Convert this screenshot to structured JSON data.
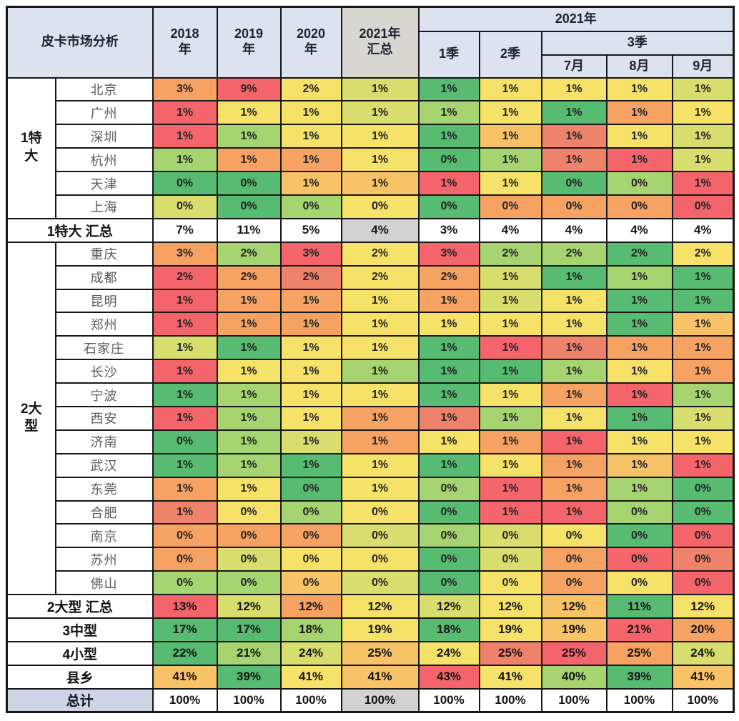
{
  "chart_data": {
    "type": "heatmap-table",
    "title": "皮卡市场分析",
    "header": {
      "corner": "皮卡市场分析",
      "y2018": "2018\n年",
      "y2019": "2019\n年",
      "y2020": "2020\n年",
      "y2021_total": "2021年\n汇总",
      "y2021": "2021年",
      "q1": "1季",
      "q2": "2季",
      "q3": "3季",
      "m7": "7月",
      "m8": "8月",
      "m9": "9月"
    },
    "columns": [
      "2018年",
      "2019年",
      "2020年",
      "2021年汇总",
      "2021年1季",
      "2021年2季",
      "2021年3季7月",
      "2021年3季8月",
      "2021年3季9月"
    ],
    "palette": {
      "r": "#f3656b",
      "ro": "#ef826a",
      "o": "#f5a263",
      "oy": "#f8c266",
      "y": "#f6e169",
      "yg": "#d7de6e",
      "lg": "#a5d471",
      "g": "#57bb72",
      "w": "#ffffff",
      "gr": "#d2d2d2"
    },
    "groups": [
      {
        "label": "1特\n大",
        "size": 6
      },
      {
        "label": "2大\n型",
        "size": 15
      }
    ],
    "rows": [
      {
        "type": "city",
        "groupStart": 0,
        "city": "北京",
        "cells": [
          [
            "3%",
            "o"
          ],
          [
            "9%",
            "r"
          ],
          [
            "2%",
            "y"
          ],
          [
            "1%",
            "yg"
          ],
          [
            "1%",
            "g"
          ],
          [
            "1%",
            "y"
          ],
          [
            "1%",
            "y"
          ],
          [
            "1%",
            "y"
          ],
          [
            "1%",
            "yg"
          ]
        ]
      },
      {
        "type": "city",
        "city": "广州",
        "cells": [
          [
            "1%",
            "r"
          ],
          [
            "1%",
            "y"
          ],
          [
            "1%",
            "y"
          ],
          [
            "1%",
            "yg"
          ],
          [
            "1%",
            "lg"
          ],
          [
            "1%",
            "y"
          ],
          [
            "1%",
            "g"
          ],
          [
            "1%",
            "o"
          ],
          [
            "1%",
            "y"
          ]
        ]
      },
      {
        "type": "city",
        "city": "深圳",
        "cells": [
          [
            "1%",
            "r"
          ],
          [
            "1%",
            "lg"
          ],
          [
            "1%",
            "y"
          ],
          [
            "1%",
            "y"
          ],
          [
            "1%",
            "g"
          ],
          [
            "1%",
            "oy"
          ],
          [
            "1%",
            "ro"
          ],
          [
            "1%",
            "y"
          ],
          [
            "1%",
            "yg"
          ]
        ]
      },
      {
        "type": "city",
        "city": "杭州",
        "cells": [
          [
            "1%",
            "lg"
          ],
          [
            "1%",
            "o"
          ],
          [
            "1%",
            "o"
          ],
          [
            "1%",
            "y"
          ],
          [
            "0%",
            "g"
          ],
          [
            "1%",
            "lg"
          ],
          [
            "1%",
            "ro"
          ],
          [
            "1%",
            "r"
          ],
          [
            "1%",
            "yg"
          ]
        ]
      },
      {
        "type": "city",
        "city": "天津",
        "cells": [
          [
            "0%",
            "g"
          ],
          [
            "0%",
            "g"
          ],
          [
            "1%",
            "oy"
          ],
          [
            "1%",
            "oy"
          ],
          [
            "1%",
            "r"
          ],
          [
            "1%",
            "y"
          ],
          [
            "0%",
            "g"
          ],
          [
            "0%",
            "lg"
          ],
          [
            "1%",
            "r"
          ]
        ]
      },
      {
        "type": "city",
        "city": "上海",
        "cells": [
          [
            "0%",
            "yg"
          ],
          [
            "0%",
            "g"
          ],
          [
            "0%",
            "lg"
          ],
          [
            "0%",
            "y"
          ],
          [
            "0%",
            "g"
          ],
          [
            "0%",
            "o"
          ],
          [
            "0%",
            "o"
          ],
          [
            "0%",
            "o"
          ],
          [
            "0%",
            "r"
          ]
        ]
      },
      {
        "type": "summary",
        "label": "1特大 汇总",
        "cells": [
          [
            "7%",
            "w"
          ],
          [
            "11%",
            "w"
          ],
          [
            "5%",
            "w"
          ],
          [
            "4%",
            "gr"
          ],
          [
            "3%",
            "w"
          ],
          [
            "4%",
            "w"
          ],
          [
            "4%",
            "w"
          ],
          [
            "4%",
            "w"
          ],
          [
            "4%",
            "w"
          ]
        ]
      },
      {
        "type": "city",
        "groupStart": 1,
        "city": "重庆",
        "cells": [
          [
            "3%",
            "o"
          ],
          [
            "2%",
            "lg"
          ],
          [
            "3%",
            "r"
          ],
          [
            "2%",
            "y"
          ],
          [
            "3%",
            "r"
          ],
          [
            "2%",
            "lg"
          ],
          [
            "2%",
            "lg"
          ],
          [
            "2%",
            "g"
          ],
          [
            "2%",
            "y"
          ]
        ]
      },
      {
        "type": "city",
        "city": "成都",
        "cells": [
          [
            "2%",
            "r"
          ],
          [
            "2%",
            "o"
          ],
          [
            "2%",
            "ro"
          ],
          [
            "2%",
            "y"
          ],
          [
            "2%",
            "o"
          ],
          [
            "1%",
            "yg"
          ],
          [
            "1%",
            "g"
          ],
          [
            "1%",
            "lg"
          ],
          [
            "1%",
            "g"
          ]
        ]
      },
      {
        "type": "city",
        "city": "昆明",
        "cells": [
          [
            "1%",
            "r"
          ],
          [
            "1%",
            "o"
          ],
          [
            "1%",
            "o"
          ],
          [
            "1%",
            "y"
          ],
          [
            "1%",
            "o"
          ],
          [
            "1%",
            "yg"
          ],
          [
            "1%",
            "y"
          ],
          [
            "1%",
            "g"
          ],
          [
            "1%",
            "g"
          ]
        ]
      },
      {
        "type": "city",
        "city": "郑州",
        "cells": [
          [
            "1%",
            "r"
          ],
          [
            "1%",
            "o"
          ],
          [
            "1%",
            "o"
          ],
          [
            "1%",
            "y"
          ],
          [
            "1%",
            "y"
          ],
          [
            "1%",
            "y"
          ],
          [
            "1%",
            "y"
          ],
          [
            "1%",
            "g"
          ],
          [
            "1%",
            "oy"
          ]
        ]
      },
      {
        "type": "city",
        "city": "石家庄",
        "cells": [
          [
            "1%",
            "yg"
          ],
          [
            "1%",
            "g"
          ],
          [
            "1%",
            "y"
          ],
          [
            "1%",
            "y"
          ],
          [
            "1%",
            "g"
          ],
          [
            "1%",
            "r"
          ],
          [
            "1%",
            "ro"
          ],
          [
            "1%",
            "o"
          ],
          [
            "1%",
            "o"
          ]
        ]
      },
      {
        "type": "city",
        "city": "长沙",
        "cells": [
          [
            "1%",
            "r"
          ],
          [
            "1%",
            "y"
          ],
          [
            "1%",
            "y"
          ],
          [
            "1%",
            "lg"
          ],
          [
            "1%",
            "g"
          ],
          [
            "1%",
            "g"
          ],
          [
            "1%",
            "lg"
          ],
          [
            "1%",
            "y"
          ],
          [
            "1%",
            "o"
          ]
        ]
      },
      {
        "type": "city",
        "city": "宁波",
        "cells": [
          [
            "1%",
            "g"
          ],
          [
            "1%",
            "lg"
          ],
          [
            "1%",
            "y"
          ],
          [
            "1%",
            "y"
          ],
          [
            "1%",
            "g"
          ],
          [
            "1%",
            "y"
          ],
          [
            "1%",
            "o"
          ],
          [
            "1%",
            "r"
          ],
          [
            "1%",
            "lg"
          ]
        ]
      },
      {
        "type": "city",
        "city": "西安",
        "cells": [
          [
            "1%",
            "r"
          ],
          [
            "1%",
            "lg"
          ],
          [
            "1%",
            "y"
          ],
          [
            "1%",
            "o"
          ],
          [
            "1%",
            "ro"
          ],
          [
            "1%",
            "lg"
          ],
          [
            "1%",
            "y"
          ],
          [
            "1%",
            "g"
          ],
          [
            "1%",
            "yg"
          ]
        ]
      },
      {
        "type": "city",
        "city": "济南",
        "cells": [
          [
            "0%",
            "g"
          ],
          [
            "1%",
            "lg"
          ],
          [
            "1%",
            "yg"
          ],
          [
            "1%",
            "o"
          ],
          [
            "1%",
            "y"
          ],
          [
            "1%",
            "o"
          ],
          [
            "1%",
            "r"
          ],
          [
            "1%",
            "y"
          ],
          [
            "1%",
            "y"
          ]
        ]
      },
      {
        "type": "city",
        "city": "武汉",
        "cells": [
          [
            "1%",
            "g"
          ],
          [
            "1%",
            "lg"
          ],
          [
            "1%",
            "g"
          ],
          [
            "1%",
            "y"
          ],
          [
            "1%",
            "g"
          ],
          [
            "1%",
            "y"
          ],
          [
            "1%",
            "o"
          ],
          [
            "1%",
            "oy"
          ],
          [
            "1%",
            "r"
          ]
        ]
      },
      {
        "type": "city",
        "city": "东莞",
        "cells": [
          [
            "1%",
            "o"
          ],
          [
            "1%",
            "y"
          ],
          [
            "0%",
            "g"
          ],
          [
            "1%",
            "y"
          ],
          [
            "0%",
            "lg"
          ],
          [
            "1%",
            "r"
          ],
          [
            "1%",
            "o"
          ],
          [
            "1%",
            "lg"
          ],
          [
            "0%",
            "g"
          ]
        ]
      },
      {
        "type": "city",
        "city": "合肥",
        "cells": [
          [
            "1%",
            "ro"
          ],
          [
            "0%",
            "y"
          ],
          [
            "0%",
            "lg"
          ],
          [
            "0%",
            "y"
          ],
          [
            "0%",
            "g"
          ],
          [
            "1%",
            "r"
          ],
          [
            "1%",
            "r"
          ],
          [
            "0%",
            "lg"
          ],
          [
            "0%",
            "g"
          ]
        ]
      },
      {
        "type": "city",
        "city": "南京",
        "cells": [
          [
            "0%",
            "o"
          ],
          [
            "0%",
            "o"
          ],
          [
            "0%",
            "o"
          ],
          [
            "0%",
            "yg"
          ],
          [
            "0%",
            "lg"
          ],
          [
            "0%",
            "yg"
          ],
          [
            "0%",
            "y"
          ],
          [
            "0%",
            "g"
          ],
          [
            "0%",
            "r"
          ]
        ]
      },
      {
        "type": "city",
        "city": "苏州",
        "cells": [
          [
            "0%",
            "o"
          ],
          [
            "0%",
            "yg"
          ],
          [
            "0%",
            "y"
          ],
          [
            "0%",
            "y"
          ],
          [
            "0%",
            "g"
          ],
          [
            "0%",
            "yg"
          ],
          [
            "0%",
            "o"
          ],
          [
            "0%",
            "r"
          ],
          [
            "0%",
            "ro"
          ]
        ]
      },
      {
        "type": "city",
        "city": "佛山",
        "cells": [
          [
            "0%",
            "lg"
          ],
          [
            "0%",
            "lg"
          ],
          [
            "0%",
            "oy"
          ],
          [
            "0%",
            "yg"
          ],
          [
            "0%",
            "g"
          ],
          [
            "0%",
            "y"
          ],
          [
            "0%",
            "o"
          ],
          [
            "0%",
            "y"
          ],
          [
            "0%",
            "r"
          ]
        ]
      },
      {
        "type": "summary",
        "label": "2大型 汇总",
        "cells": [
          [
            "13%",
            "r"
          ],
          [
            "12%",
            "yg"
          ],
          [
            "12%",
            "o"
          ],
          [
            "12%",
            "y"
          ],
          [
            "12%",
            "yg"
          ],
          [
            "12%",
            "y"
          ],
          [
            "12%",
            "oy"
          ],
          [
            "11%",
            "g"
          ],
          [
            "12%",
            "y"
          ]
        ]
      },
      {
        "type": "summary",
        "label": "3中型",
        "cells": [
          [
            "17%",
            "g"
          ],
          [
            "17%",
            "g"
          ],
          [
            "18%",
            "lg"
          ],
          [
            "19%",
            "y"
          ],
          [
            "18%",
            "g"
          ],
          [
            "19%",
            "y"
          ],
          [
            "19%",
            "oy"
          ],
          [
            "21%",
            "r"
          ],
          [
            "20%",
            "o"
          ]
        ]
      },
      {
        "type": "summary",
        "label": "4小型",
        "cells": [
          [
            "22%",
            "g"
          ],
          [
            "21%",
            "lg"
          ],
          [
            "24%",
            "yg"
          ],
          [
            "25%",
            "oy"
          ],
          [
            "24%",
            "y"
          ],
          [
            "25%",
            "ro"
          ],
          [
            "25%",
            "r"
          ],
          [
            "25%",
            "o"
          ],
          [
            "24%",
            "yg"
          ]
        ]
      },
      {
        "type": "summary",
        "label": "县乡",
        "cells": [
          [
            "41%",
            "oy"
          ],
          [
            "39%",
            "g"
          ],
          [
            "41%",
            "y"
          ],
          [
            "41%",
            "oy"
          ],
          [
            "43%",
            "r"
          ],
          [
            "41%",
            "y"
          ],
          [
            "40%",
            "lg"
          ],
          [
            "39%",
            "g"
          ],
          [
            "41%",
            "oy"
          ]
        ]
      },
      {
        "type": "total",
        "label": "总计",
        "cells": [
          [
            "100%",
            "w"
          ],
          [
            "100%",
            "w"
          ],
          [
            "100%",
            "w"
          ],
          [
            "100%",
            "gr"
          ],
          [
            "100%",
            "w"
          ],
          [
            "100%",
            "w"
          ],
          [
            "100%",
            "w"
          ],
          [
            "100%",
            "w"
          ],
          [
            "100%",
            "w"
          ]
        ]
      }
    ]
  }
}
